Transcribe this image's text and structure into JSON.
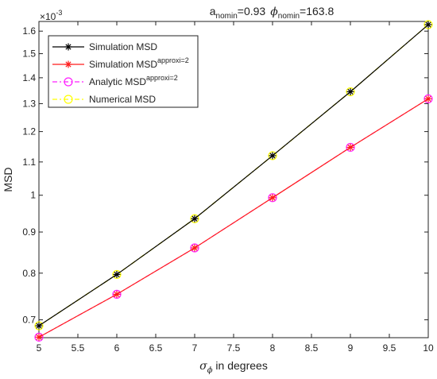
{
  "chart_data": {
    "type": "line",
    "title": {
      "a_base": "a",
      "a_sub": "nomin",
      "a_value": "=0.93",
      "phi_symbol": "ϕ",
      "phi_sub": "nomin",
      "phi_value": "=163.8"
    },
    "exponent_label": "×10",
    "exponent_power": "-3",
    "xlabel": {
      "symbol": "σ",
      "sub": "ϕ",
      "rest": " in degrees"
    },
    "ylabel": "MSD",
    "xlim": [
      5,
      10
    ],
    "ylim": [
      0.665,
      1.645
    ],
    "y_scale": "log",
    "x_ticks": [
      "5",
      "5.5",
      "6",
      "6.5",
      "7",
      "7.5",
      "8",
      "8.5",
      "9",
      "9.5",
      "10"
    ],
    "x_tick_values": [
      5,
      5.5,
      6,
      6.5,
      7,
      7.5,
      8,
      8.5,
      9,
      9.5,
      10
    ],
    "y_ticks": [
      "0.7",
      "0.8",
      "0.9",
      "1",
      "1.1",
      "1.2",
      "1.3",
      "1.4",
      "1.5",
      "1.6"
    ],
    "y_tick_values": [
      0.7,
      0.8,
      0.9,
      1.0,
      1.1,
      1.2,
      1.3,
      1.4,
      1.5,
      1.6
    ],
    "grid": false,
    "legend_position": "top-left",
    "x": [
      5,
      6,
      7,
      8,
      9,
      10
    ],
    "series": [
      {
        "name": "Simulation MSD",
        "sup": "",
        "values": [
          0.688,
          0.797,
          0.935,
          1.12,
          1.345,
          1.63
        ],
        "color": "#000000",
        "marker": "asterisk",
        "dash": "solid"
      },
      {
        "name": "Simulation MSD",
        "sup": "approxi=2",
        "values": [
          0.666,
          0.753,
          0.86,
          0.993,
          1.147,
          1.318
        ],
        "color": "#ff1a1a",
        "marker": "asterisk",
        "dash": "solid"
      },
      {
        "name": "Analytic MSD",
        "sup": "approxi=2",
        "values": [
          0.666,
          0.753,
          0.86,
          0.993,
          1.147,
          1.318
        ],
        "color": "#ff22ff",
        "marker": "circle",
        "dash": "dashdot"
      },
      {
        "name": "Numerical MSD",
        "sup": "",
        "values": [
          0.688,
          0.797,
          0.935,
          1.12,
          1.345,
          1.63
        ],
        "color": "#ffff00",
        "marker": "circle",
        "dash": "dashdot"
      }
    ]
  }
}
